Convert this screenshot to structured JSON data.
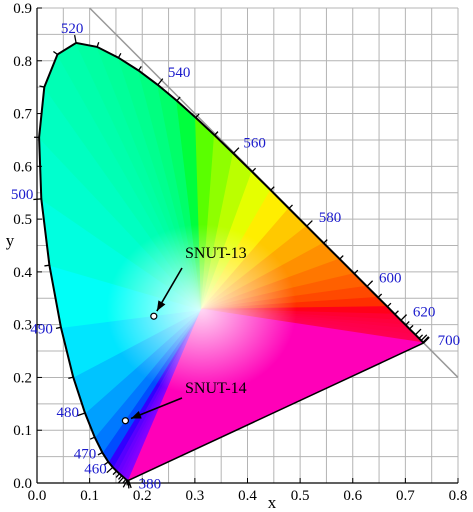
{
  "chart_data": {
    "type": "scatter",
    "title": "",
    "xlabel": "x",
    "ylabel": "y",
    "xlim": [
      0.0,
      0.8
    ],
    "ylim": [
      0.0,
      0.9
    ],
    "grid": true,
    "x_ticks": [
      "0.0",
      "0.1",
      "0.2",
      "0.3",
      "0.4",
      "0.5",
      "0.6",
      "0.7",
      "0.8"
    ],
    "y_ticks": [
      "0.0",
      "0.1",
      "0.2",
      "0.3",
      "0.4",
      "0.5",
      "0.6",
      "0.7",
      "0.8",
      "0.9"
    ],
    "wavelength_labels": [
      {
        "text": "380",
        "x": 0.1741,
        "y": 0.005
      },
      {
        "text": "460",
        "x": 0.144,
        "y": 0.0297
      },
      {
        "text": "470",
        "x": 0.1241,
        "y": 0.0578
      },
      {
        "text": "480",
        "x": 0.0913,
        "y": 0.1327
      },
      {
        "text": "490",
        "x": 0.0454,
        "y": 0.295
      },
      {
        "text": "500",
        "x": 0.0082,
        "y": 0.5384
      },
      {
        "text": "520",
        "x": 0.0743,
        "y": 0.8338
      },
      {
        "text": "540",
        "x": 0.2296,
        "y": 0.7543
      },
      {
        "text": "560",
        "x": 0.3731,
        "y": 0.6245
      },
      {
        "text": "580",
        "x": 0.5125,
        "y": 0.4866
      },
      {
        "text": "600",
        "x": 0.627,
        "y": 0.3725
      },
      {
        "text": "620",
        "x": 0.6915,
        "y": 0.3083
      },
      {
        "text": "700",
        "x": 0.7347,
        "y": 0.2653
      }
    ],
    "series": [
      {
        "name": "SNUT-13",
        "points": [
          {
            "x": 0.222,
            "y": 0.316
          }
        ]
      },
      {
        "name": "SNUT-14",
        "points": [
          {
            "x": 0.168,
            "y": 0.118
          }
        ]
      }
    ],
    "annotations": [
      {
        "text": "SNUT-13",
        "target": 0
      },
      {
        "text": "SNUT-14",
        "target": 1
      }
    ]
  }
}
